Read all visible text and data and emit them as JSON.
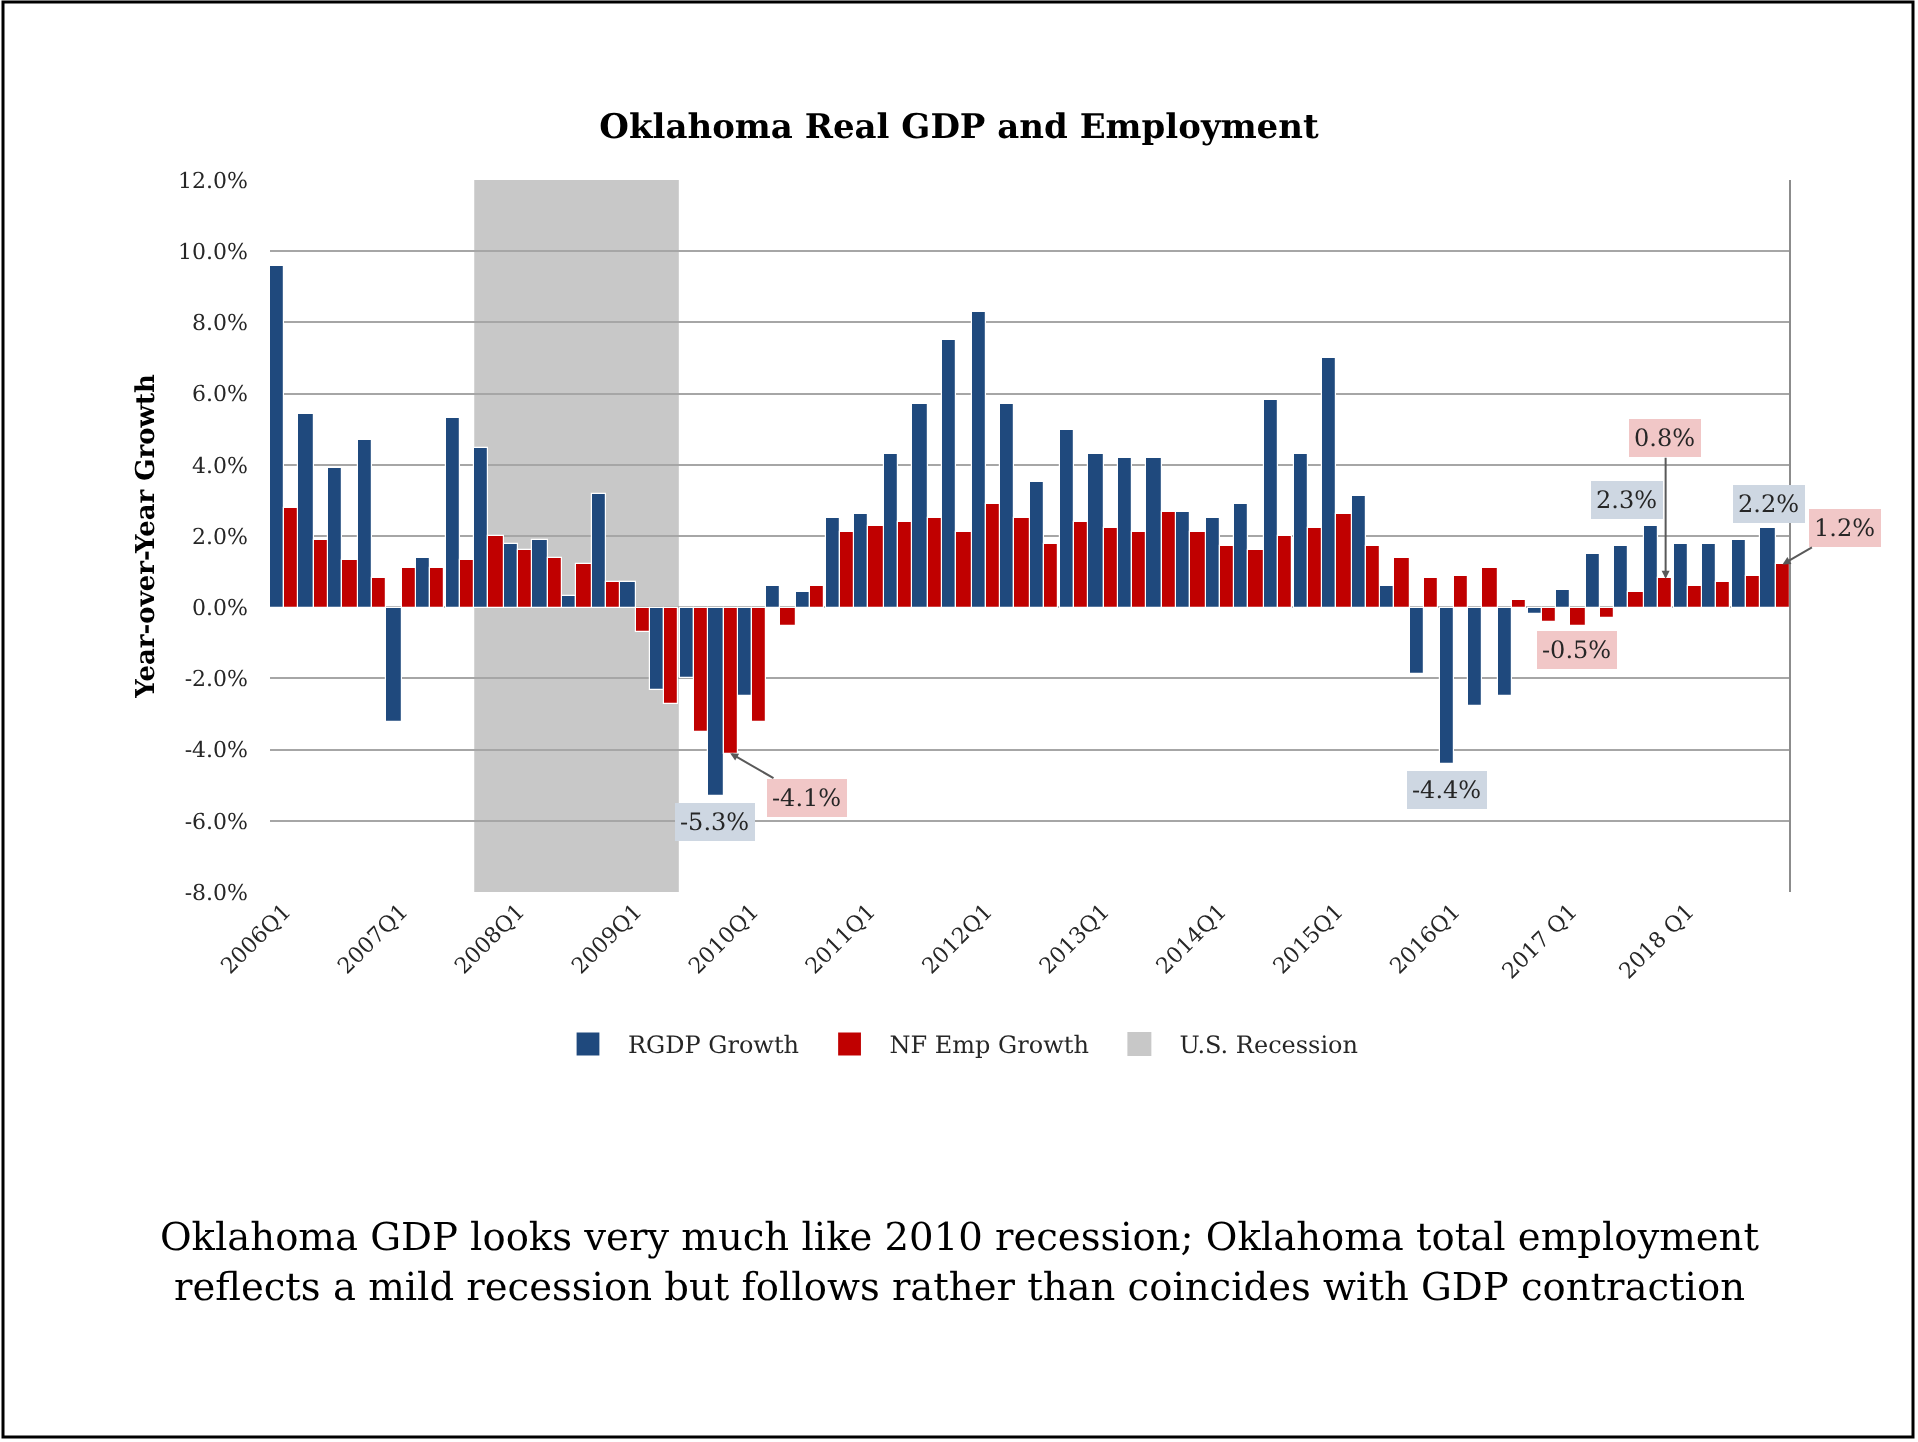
{
  "chart_data": {
    "type": "bar",
    "title": "Oklahoma Real GDP and Employment",
    "ylabel": "Year-over-Year Growth",
    "x": [
      "2006-02-15",
      "2006-05-16",
      "2006-08-16",
      "2006-11-16",
      "2007-02-15",
      "2007-05-16",
      "2007-08-16",
      "2007-11-16",
      "2008-02-15",
      "2008-05-16",
      "2008-08-16",
      "2008-11-16",
      "2009-02-15",
      "2009-05-16",
      "2009-08-16",
      "2009-11-16",
      "2010-02-15",
      "2010-05-16",
      "2010-08-16",
      "2010-11-16",
      "2011-02-15",
      "2011-05-16",
      "2011-08-16",
      "2011-11-16",
      "2012-02-15",
      "2012-05-16",
      "2012-08-16",
      "2012-11-16",
      "2013-02-15",
      "2013-05-16",
      "2013-08-16",
      "2013-11-16",
      "2014-02-15",
      "2014-05-16",
      "2014-08-16",
      "2014-11-16",
      "2015-02-15",
      "2015-05-16",
      "2015-08-16",
      "2015-11-16",
      "2016-02-15",
      "2016-05-16",
      "2016-08-16",
      "2016-11-16",
      "2017-02-15",
      "2017-05-16",
      "2017-08-16",
      "2017-11-16",
      "2018-02-15",
      "2018-05-16",
      "2018-08-16",
      "2018-11-16"
    ],
    "xlim": [
      "2006-01-01",
      "2019-01-01"
    ],
    "xticks": [
      {
        "value": "2006-02-15",
        "label": "2006Q1"
      },
      {
        "value": "2007-02-15",
        "label": "2007Q1"
      },
      {
        "value": "2008-02-15",
        "label": "2008Q1"
      },
      {
        "value": "2009-02-15",
        "label": "2009Q1"
      },
      {
        "value": "2010-02-15",
        "label": "2010Q1"
      },
      {
        "value": "2011-02-15",
        "label": "2011Q1"
      },
      {
        "value": "2012-02-15",
        "label": "2012Q1"
      },
      {
        "value": "2013-02-15",
        "label": "2013Q1"
      },
      {
        "value": "2014-02-15",
        "label": "2014Q1"
      },
      {
        "value": "2015-02-15",
        "label": "2015Q1"
      },
      {
        "value": "2016-02-15",
        "label": "2016Q1"
      },
      {
        "value": "2017-02-15",
        "label": "2017 Q1"
      },
      {
        "value": "2018-02-15",
        "label": "2018 Q1"
      }
    ],
    "ylim": [
      -8,
      12
    ],
    "yticks": [
      {
        "value": -8,
        "label": "-8.0%"
      },
      {
        "value": -6,
        "label": "-6.0%"
      },
      {
        "value": -4,
        "label": "-4.0%"
      },
      {
        "value": -2,
        "label": "-2.0%"
      },
      {
        "value": 0,
        "label": "0.0%"
      },
      {
        "value": 2,
        "label": "2.0%"
      },
      {
        "value": 4,
        "label": "4.0%"
      },
      {
        "value": 6,
        "label": "6.0%"
      },
      {
        "value": 8,
        "label": "8.0%"
      },
      {
        "value": 10,
        "label": "10.0%"
      },
      {
        "value": 12,
        "label": "12.0%"
      }
    ],
    "series": [
      {
        "name": "RGDP Growth",
        "color": "#1f497d",
        "values": [
          9.6,
          5.4,
          3.9,
          4.7,
          -3.2,
          1.4,
          5.3,
          4.5,
          1.8,
          1.9,
          0.3,
          3.2,
          0.7,
          -2.3,
          -2.0,
          -5.3,
          -2.5,
          0.6,
          0.4,
          2.5,
          2.6,
          4.3,
          5.7,
          7.5,
          8.3,
          5.7,
          3.5,
          5.0,
          4.3,
          4.2,
          4.2,
          2.7,
          2.5,
          2.9,
          5.8,
          4.3,
          7.0,
          3.1,
          0.6,
          -1.9,
          -4.4,
          -2.8,
          -2.5,
          -0.2,
          0.5,
          1.5,
          1.7,
          2.3,
          1.8,
          1.8,
          1.9,
          2.2
        ],
        "value_labels": [
          null,
          null,
          null,
          null,
          null,
          null,
          null,
          null,
          null,
          null,
          null,
          null,
          null,
          null,
          null,
          "-5.3%",
          null,
          null,
          null,
          null,
          null,
          null,
          null,
          null,
          null,
          null,
          null,
          null,
          null,
          null,
          null,
          null,
          null,
          null,
          null,
          null,
          null,
          null,
          null,
          null,
          "-4.4%",
          null,
          null,
          null,
          null,
          null,
          null,
          "2.3%",
          null,
          null,
          null,
          "2.2%"
        ]
      },
      {
        "name": "NF Emp Growth",
        "color": "#c00000",
        "values": [
          2.8,
          1.9,
          1.3,
          0.8,
          1.1,
          1.1,
          1.3,
          2.0,
          1.6,
          1.4,
          1.2,
          0.7,
          -0.7,
          -2.7,
          -3.5,
          -4.1,
          -3.2,
          -0.5,
          0.6,
          2.1,
          2.3,
          2.4,
          2.5,
          2.1,
          2.9,
          2.5,
          1.8,
          2.4,
          2.2,
          2.1,
          2.7,
          2.1,
          1.7,
          1.6,
          2.0,
          2.2,
          2.6,
          1.7,
          1.4,
          0.8,
          0.9,
          1.1,
          0.2,
          -0.4,
          -0.5,
          -0.3,
          0.4,
          0.8,
          0.6,
          0.7,
          0.9,
          1.2
        ],
        "value_labels": [
          null,
          null,
          null,
          null,
          null,
          null,
          null,
          null,
          null,
          null,
          null,
          null,
          null,
          null,
          null,
          "-4.1%",
          null,
          null,
          null,
          null,
          null,
          null,
          null,
          null,
          null,
          null,
          null,
          null,
          null,
          null,
          null,
          null,
          null,
          null,
          null,
          null,
          null,
          null,
          null,
          null,
          null,
          null,
          null,
          null,
          "-0.5%",
          null,
          null,
          "0.8%",
          null,
          null,
          null,
          "1.2%"
        ]
      }
    ],
    "bands": [
      {
        "axis": "x",
        "from": "2007-10-01",
        "to": "2009-07-01",
        "label": "U.S. Recession",
        "color": "#c8c8c8"
      }
    ],
    "grid": "y",
    "legend": "bottom",
    "annotations": [
      "Oklahoma GDP looks very much like 2010 recession; Oklahoma total employment reflects a mild recession but follows rather than coincides with GDP contraction"
    ]
  }
}
